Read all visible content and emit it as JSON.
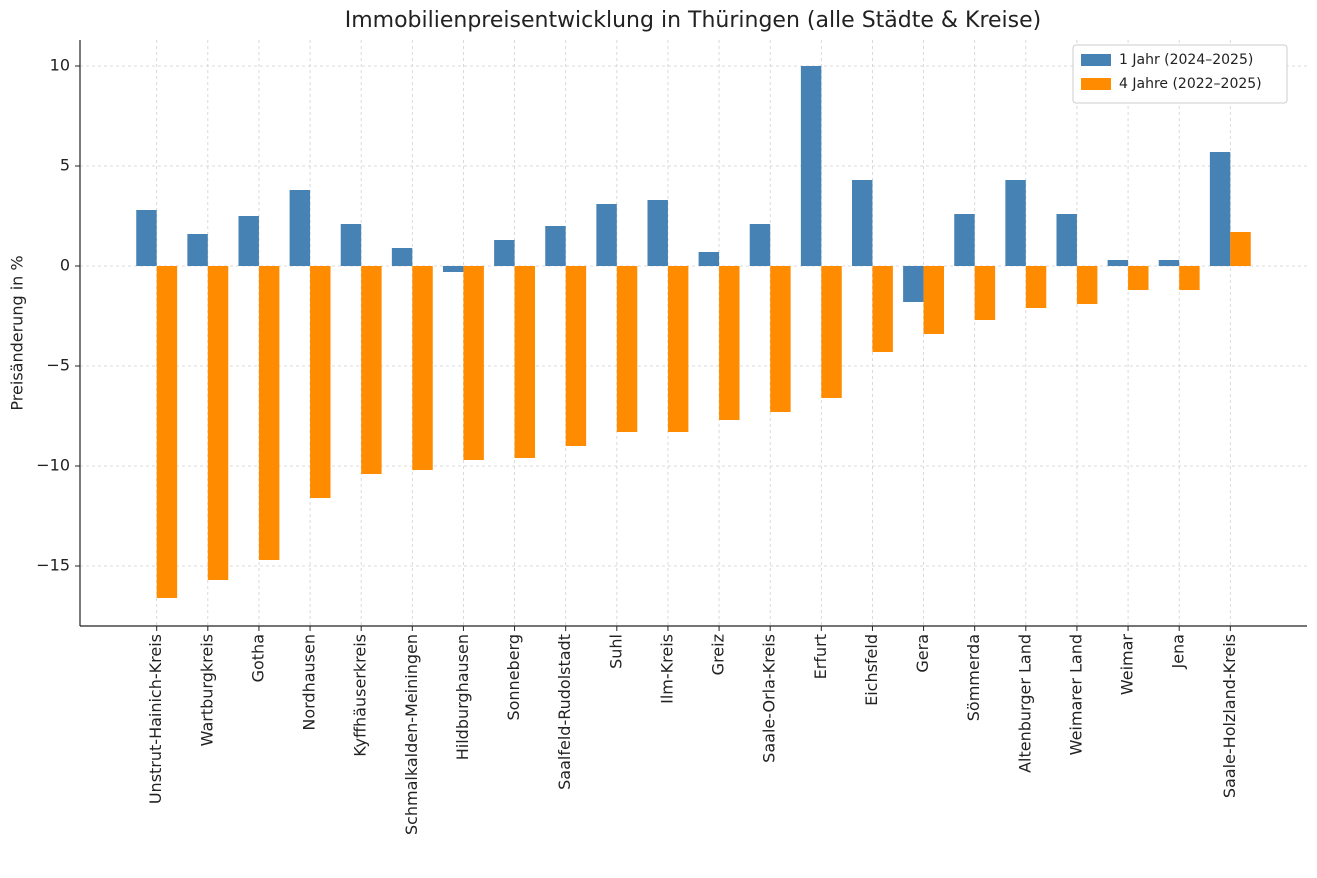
{
  "chart_data": {
    "type": "bar",
    "title": "Immobilienpreisentwicklung in Thüringen (alle Städte & Kreise)",
    "y_label": "Preisänderung in %",
    "categories": [
      "Unstrut-Hainich-Kreis",
      "Wartburgkreis",
      "Gotha",
      "Nordhausen",
      "Kyffhäuserkreis",
      "Schmalkalden-Meiningen",
      "Hildburghausen",
      "Sonneberg",
      "Saalfeld-Rudolstadt",
      "Suhl",
      "Ilm-Kreis",
      "Greiz",
      "Saale-Orla-Kreis",
      "Erfurt",
      "Eichsfeld",
      "Gera",
      "Sömmerda",
      "Altenburger Land",
      "Weimarer Land",
      "Weimar",
      "Jena",
      "Saale-Holzland-Kreis"
    ],
    "series": [
      {
        "name": "1 Jahr (2024–2025)",
        "color": "#4682b4",
        "values": [
          2.8,
          1.6,
          2.5,
          3.8,
          2.1,
          0.9,
          -0.3,
          1.3,
          2.0,
          3.1,
          3.3,
          0.7,
          2.1,
          10,
          4.3,
          -1.8,
          2.6,
          4.3,
          2.6,
          0.3,
          0.3,
          5.7
        ]
      },
      {
        "name": "4 Jahre (2022–2025)",
        "color": "#ff8c00",
        "values": [
          -16.6,
          -15.7,
          -14.7,
          -11.6,
          -10.4,
          -10.2,
          -9.7,
          -9.6,
          -9.0,
          -8.3,
          -8.3,
          -7.7,
          -7.3,
          -6.6,
          -4.3,
          -3.4,
          -2.7,
          -2.1,
          -1.9,
          -1.2,
          -1.2,
          1.7
        ]
      }
    ],
    "ylim": [
      -18,
      11.3
    ],
    "yticks": [
      {
        "value": -15,
        "label": "−15"
      },
      {
        "value": -10,
        "label": "−10"
      },
      {
        "value": -5,
        "label": "−5"
      },
      0,
      5,
      10
    ],
    "grid": true,
    "legend": "upper right"
  }
}
